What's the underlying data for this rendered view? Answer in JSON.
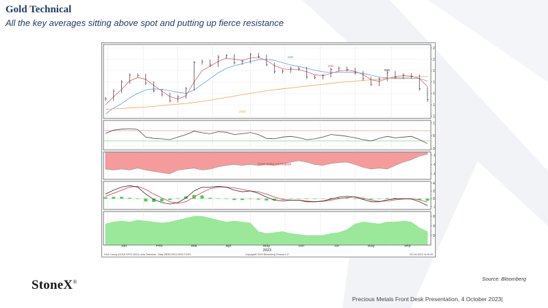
{
  "slide": {
    "title": "Gold Technical",
    "subtitle": "All the key averages sitting above spot and putting up fierce resistance",
    "source": "Source:  Bloomberg",
    "footer": "Precious Metals Front Desk Presentation, 4 October 2023|",
    "logo": "StoneX"
  },
  "colors": {
    "title": "#1f3a5f",
    "price": "#2b2b2b",
    "ma_20": "#e05a6a",
    "ma_50": "#5aa0e0",
    "ma_200": "#f0a04a",
    "correlation_fill": "#f59b9b",
    "rsi_line": "#444444",
    "macd_line": "#2b2b2b",
    "macd_signal": "#e05a6a",
    "macd_hist": "#2ecc40",
    "bottom_fill": "#9be89b"
  },
  "chart_data": [
    {
      "type": "line",
      "panel": "price",
      "yticks": [
        1750,
        1800,
        1850,
        1900,
        1950,
        2000,
        2050
      ],
      "ylim": [
        1740,
        2065
      ],
      "x": [
        "2022-12-30",
        "2023-01-06",
        "2023-01-13",
        "2023-01-20",
        "2023-01-27",
        "2023-02-03",
        "2023-02-10",
        "2023-02-17",
        "2023-02-24",
        "2023-03-03",
        "2023-03-10",
        "2023-03-17",
        "2023-03-24",
        "2023-03-31",
        "2023-04-07",
        "2023-04-14",
        "2023-04-21",
        "2023-04-28",
        "2023-05-05",
        "2023-05-12",
        "2023-05-19",
        "2023-05-26",
        "2023-06-02",
        "2023-06-09",
        "2023-06-16",
        "2023-06-23",
        "2023-06-30",
        "2023-07-07",
        "2023-07-14",
        "2023-07-21",
        "2023-07-28",
        "2023-08-04",
        "2023-08-11",
        "2023-08-18",
        "2023-08-25",
        "2023-09-01",
        "2023-09-08",
        "2023-09-15",
        "2023-09-22",
        "2023-09-29",
        "2023-10-03"
      ],
      "series": [
        {
          "values": [
            1826,
            1860,
            1900,
            1930,
            1928,
            1895,
            1862,
            1845,
            1818,
            1835,
            1870,
            1985,
            1990,
            1975,
            2010,
            2015,
            1985,
            1990,
            2020,
            2012,
            1977,
            1945,
            1948,
            1960,
            1958,
            1922,
            1920,
            1928,
            1955,
            1960,
            1955,
            1940,
            1915,
            1890,
            1912,
            1940,
            1922,
            1930,
            1925,
            1870,
            1822
          ]
        },
        {
          "name": "20D",
          "values": [
            1800,
            1835,
            1868,
            1905,
            1920,
            1912,
            1885,
            1860,
            1836,
            1825,
            1840,
            1900,
            1950,
            1970,
            1990,
            2005,
            2000,
            1995,
            2005,
            2008,
            1995,
            1972,
            1958,
            1955,
            1955,
            1945,
            1932,
            1928,
            1938,
            1948,
            1952,
            1947,
            1933,
            1910,
            1903,
            1915,
            1924,
            1928,
            1926,
            1915,
            1880
          ]
        },
        {
          "name": "50D",
          "values": [
            1760,
            1785,
            1805,
            1830,
            1850,
            1865,
            1870,
            1868,
            1862,
            1855,
            1850,
            1865,
            1890,
            1915,
            1940,
            1960,
            1972,
            1980,
            1990,
            1998,
            2000,
            1995,
            1985,
            1975,
            1968,
            1960,
            1952,
            1945,
            1942,
            1942,
            1943,
            1942,
            1938,
            1930,
            1922,
            1918,
            1915,
            1915,
            1916,
            1915,
            1905
          ]
        },
        {
          "name": "200D",
          "values": [
            1780,
            1782,
            1784,
            1786,
            1788,
            1790,
            1793,
            1796,
            1800,
            1803,
            1806,
            1810,
            1815,
            1820,
            1826,
            1832,
            1838,
            1844,
            1850,
            1856,
            1862,
            1866,
            1870,
            1874,
            1878,
            1882,
            1886,
            1890,
            1894,
            1898,
            1901,
            1904,
            1907,
            1910,
            1913,
            1916,
            1918,
            1920,
            1922,
            1923,
            1924
          ]
        }
      ]
    },
    {
      "type": "line",
      "panel": "rsi",
      "yticks": [
        0,
        50,
        100
      ],
      "ylim": [
        -5,
        110
      ],
      "values": [
        60,
        72,
        76,
        78,
        75,
        45,
        40,
        38,
        35,
        45,
        55,
        68,
        62,
        58,
        66,
        64,
        55,
        58,
        63,
        55,
        40,
        38,
        45,
        48,
        43,
        35,
        38,
        45,
        55,
        52,
        48,
        42,
        35,
        30,
        40,
        48,
        42,
        45,
        48,
        35,
        20
      ]
    },
    {
      "type": "area",
      "panel": "correlation",
      "yticks": [
        -0.4,
        -0.6,
        -0.8
      ],
      "ylim": [
        -0.92,
        -0.33
      ],
      "annotation": "Gold dollar correlation",
      "values": [
        -0.7,
        -0.72,
        -0.7,
        -0.72,
        -0.68,
        -0.72,
        -0.75,
        -0.78,
        -0.8,
        -0.72,
        -0.7,
        -0.68,
        -0.72,
        -0.7,
        -0.65,
        -0.62,
        -0.6,
        -0.62,
        -0.6,
        -0.62,
        -0.6,
        -0.62,
        -0.58,
        -0.55,
        -0.52,
        -0.55,
        -0.6,
        -0.62,
        -0.58,
        -0.56,
        -0.55,
        -0.6,
        -0.66,
        -0.7,
        -0.68,
        -0.7,
        -0.62,
        -0.55,
        -0.5,
        -0.42,
        -0.38
      ]
    },
    {
      "type": "bar",
      "panel": "macd",
      "yticks": [
        40,
        20,
        0,
        -20
      ],
      "ylim": [
        -28,
        45
      ],
      "series": [
        {
          "name": "MACD",
          "values": [
            12,
            22,
            30,
            34,
            30,
            12,
            -2,
            -10,
            -14,
            -10,
            2,
            20,
            30,
            30,
            32,
            30,
            22,
            18,
            20,
            14,
            4,
            -4,
            -6,
            -4,
            -4,
            -8,
            -8,
            -6,
            -1,
            4,
            6,
            4,
            -2,
            -8,
            -8,
            -3,
            0,
            0,
            -1,
            -8,
            -18
          ]
        },
        {
          "name": "Signal",
          "values": [
            6,
            14,
            22,
            30,
            32,
            24,
            12,
            2,
            -8,
            -12,
            -8,
            4,
            16,
            26,
            30,
            30,
            28,
            24,
            20,
            18,
            12,
            4,
            -2,
            -4,
            -4,
            -6,
            -8,
            -7,
            -4,
            0,
            3,
            5,
            2,
            -4,
            -7,
            -6,
            -3,
            -1,
            0,
            -3,
            -9
          ]
        },
        {
          "name": "Histogram",
          "values": [
            6,
            8,
            8,
            4,
            -2,
            -12,
            -14,
            -12,
            -6,
            2,
            10,
            16,
            14,
            4,
            2,
            0,
            -6,
            -6,
            0,
            -4,
            -8,
            -8,
            -4,
            0,
            0,
            -2,
            0,
            1,
            3,
            4,
            3,
            -1,
            -4,
            -4,
            -1,
            3,
            3,
            1,
            -1,
            -5,
            -9
          ]
        }
      ]
    },
    {
      "type": "area",
      "panel": "bottom",
      "yticks": [
        0.9,
        0.8,
        0.7
      ],
      "ylim": [
        0.6,
        0.95
      ],
      "values": [
        0.82,
        0.84,
        0.85,
        0.84,
        0.86,
        0.85,
        0.84,
        0.83,
        0.84,
        0.86,
        0.88,
        0.9,
        0.9,
        0.88,
        0.86,
        0.84,
        0.85,
        0.84,
        0.83,
        0.74,
        0.72,
        0.73,
        0.74,
        0.72,
        0.71,
        0.7,
        0.7,
        0.7,
        0.72,
        0.73,
        0.76,
        0.82,
        0.84,
        0.83,
        0.82,
        0.84,
        0.84,
        0.85,
        0.84,
        0.78,
        0.74
      ]
    }
  ],
  "xaxis": {
    "months": [
      "Jan",
      "Feb",
      "Mar",
      "Apr",
      "May",
      "Jun",
      "Jul",
      "Aug",
      "Sep"
    ],
    "year": "2023"
  },
  "chart_footer": {
    "left": "XAU Curncy (GOLD SPOT $/OZ) Gold Technical , Daily 28DEC2022-03OCT2023",
    "center": "Copyright© 2023 Bloomberg Finance L.P.",
    "right": "03-Oct-2023 14:40:20"
  }
}
